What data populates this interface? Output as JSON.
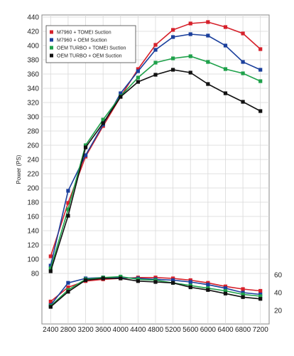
{
  "chart_data": {
    "type": "line",
    "title": "",
    "xlabel": "",
    "ylabel": "Power (PS)",
    "x": [
      2400,
      2800,
      3200,
      3600,
      4000,
      4400,
      4800,
      5200,
      5600,
      6000,
      6400,
      6800,
      7200
    ],
    "x_tick_labels": [
      "2400",
      "2800",
      "3200",
      "3600",
      "4000",
      "4400",
      "4800",
      "5200",
      "5600",
      "6000",
      "6400",
      "6800",
      "7200"
    ],
    "xlim": [
      2200,
      7400
    ],
    "ylim": [
      80,
      440
    ],
    "y_ticks": [
      80,
      100,
      120,
      140,
      160,
      180,
      200,
      220,
      240,
      260,
      280,
      300,
      320,
      340,
      360,
      380,
      400,
      420,
      440
    ],
    "y_tick_labels": [
      "80",
      "100",
      "120",
      "140",
      "160",
      "180",
      "200",
      "220",
      "240",
      "260",
      "280",
      "300",
      "320",
      "340",
      "360",
      "380",
      "400",
      "420",
      "440"
    ],
    "y2lim": [
      20,
      65
    ],
    "y2_ticks": [
      20,
      40,
      60
    ],
    "y2_tick_labels": [
      "20",
      "40",
      "60"
    ],
    "grid": true,
    "legend_position": "top-left",
    "series": [
      {
        "name": "M7960 + TOMEI Suction",
        "color": "#d6202a",
        "power": [
          104,
          179,
          244,
          287,
          328,
          367,
          401,
          422,
          431,
          433,
          426,
          417,
          395
        ],
        "torque": [
          30,
          46,
          53,
          55,
          56,
          57,
          57,
          56,
          54,
          51,
          47,
          44,
          42
        ]
      },
      {
        "name": "M7960 + OEM Suction",
        "color": "#1a3f9c",
        "power": [
          91,
          196,
          246,
          289,
          333,
          364,
          394,
          412,
          416,
          414,
          400,
          377,
          366
        ],
        "torque": [
          26,
          51,
          56,
          57,
          57,
          56,
          55,
          54,
          52,
          49,
          45,
          40,
          38
        ]
      },
      {
        "name": "OEM TURBO + TOMEI Suction",
        "color": "#1ea14a",
        "power": [
          87,
          170,
          260,
          296,
          329,
          355,
          376,
          382,
          385,
          377,
          367,
          361,
          350
        ],
        "torque": [
          25,
          43,
          55,
          57,
          58,
          55,
          54,
          51,
          48,
          45,
          42,
          38,
          36
        ]
      },
      {
        "name": "OEM TURBO + OEM Suction",
        "color": "#111111",
        "power": [
          83,
          161,
          257,
          291,
          328,
          349,
          359,
          366,
          362,
          346,
          333,
          321,
          308
        ],
        "torque": [
          24,
          41,
          54,
          56,
          56,
          53,
          52,
          51,
          46,
          43,
          39,
          35,
          33
        ]
      }
    ]
  }
}
